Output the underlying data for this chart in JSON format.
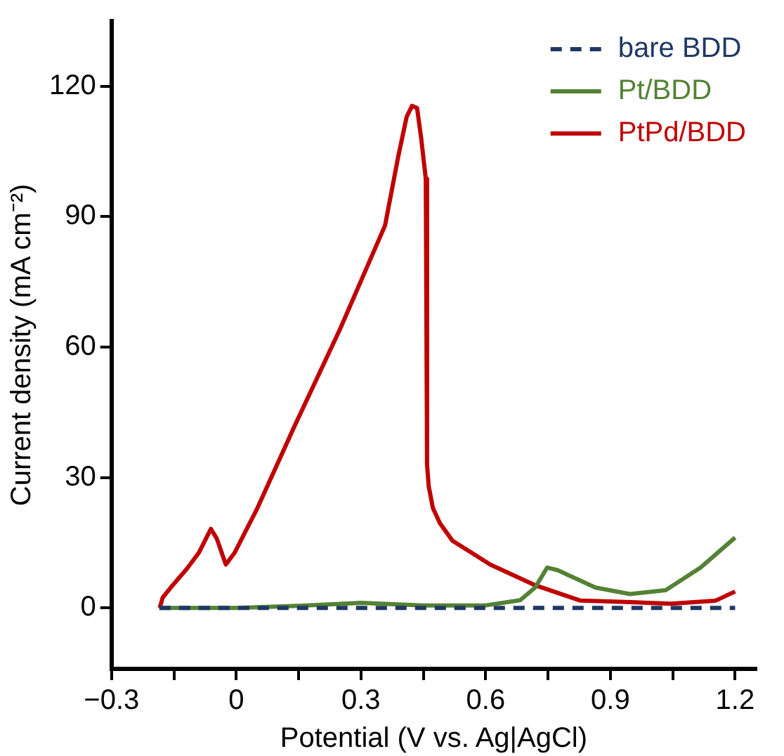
{
  "chart_data": {
    "type": "line",
    "xlabel": "Potential (V vs. Ag|AgCl)",
    "ylabel": "Current density (mA cm⁻²)",
    "xlim": [
      -0.3,
      1.25
    ],
    "ylim": [
      -14,
      135
    ],
    "xticks": [
      {
        "value": -0.3,
        "label": "−0.3"
      },
      {
        "value": -0.15,
        "label": null
      },
      0,
      {
        "value": 0.15,
        "label": null
      },
      0.3,
      {
        "value": 0.45,
        "label": null
      },
      0.6,
      {
        "value": 0.75,
        "label": null
      },
      0.9,
      {
        "value": 1.05,
        "label": null
      },
      1.2
    ],
    "yticks": [
      0,
      30,
      60,
      90,
      120
    ],
    "grid": false,
    "legend": "top right",
    "series": [
      {
        "name": "bare BDD",
        "color": "#1f3864",
        "line_style": "dashed",
        "x": [
          -0.185,
          0.2,
          0.6,
          1.2
        ],
        "values": [
          0,
          0,
          0,
          0
        ]
      },
      {
        "name": "Pt/BDD",
        "color": "#548235",
        "line_style": "solid",
        "x": [
          -0.185,
          0,
          0.15,
          0.3,
          0.45,
          0.6,
          0.683,
          0.719,
          0.748,
          0.773,
          0.864,
          0.947,
          1.033,
          1.117,
          1.2
        ],
        "values": [
          0,
          0,
          0.5,
          1.2,
          0.6,
          0.6,
          1.8,
          4.7,
          9.3,
          8.7,
          4.7,
          3.2,
          4.1,
          9.3,
          16.2
        ]
      },
      {
        "name": "PtPd/BDD",
        "color": "#c00000",
        "line_style": "solid",
        "x": [
          -0.184,
          -0.177,
          -0.155,
          -0.119,
          -0.09,
          -0.061,
          -0.047,
          -0.025,
          -0.004,
          0.051,
          0.141,
          0.249,
          0.358,
          0.39,
          0.41,
          0.423,
          0.435,
          0.445,
          0.452,
          0.456,
          0.459,
          0.463,
          0.473,
          0.49,
          0.52,
          0.611,
          0.72,
          0.828,
          0.937,
          1.045,
          1.153,
          1.2
        ],
        "values": [
          0,
          2.4,
          5,
          9,
          12.7,
          18.2,
          16,
          10,
          12.7,
          23,
          42,
          64,
          88,
          104,
          113,
          115.5,
          115,
          108,
          102,
          98.7,
          33,
          28,
          23,
          19.5,
          15.5,
          10,
          5.2,
          1.7,
          1.4,
          1,
          1.7,
          3.8
        ]
      }
    ]
  }
}
